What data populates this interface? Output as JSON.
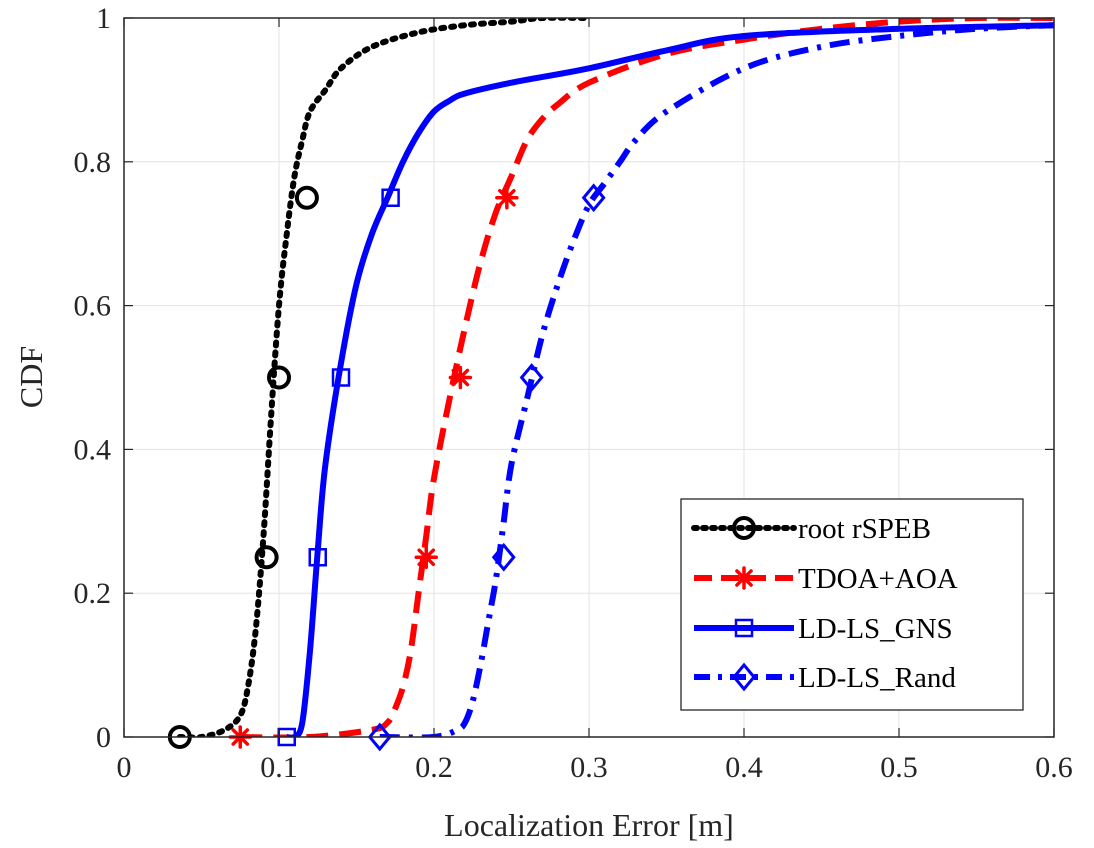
{
  "chart_data": {
    "type": "line",
    "title": "",
    "xlabel": "Localization Error [m]",
    "ylabel": "CDF",
    "xlim": [
      0,
      0.6
    ],
    "ylim": [
      0,
      1
    ],
    "xticks": [
      "0",
      "0.1",
      "0.2",
      "0.3",
      "0.4",
      "0.5",
      "0.6"
    ],
    "yticks": [
      "0",
      "0.2",
      "0.4",
      "0.6",
      "0.8",
      "1"
    ],
    "grid": true,
    "legend_position": "lower-right",
    "series": [
      {
        "name": "root rSPEB",
        "color": "#000000",
        "line_style": "dotted",
        "marker": "circle",
        "x": [
          0.036,
          0.05,
          0.065,
          0.075,
          0.08,
          0.085,
          0.09,
          0.095,
          0.1,
          0.105,
          0.11,
          0.115,
          0.12,
          0.13,
          0.14,
          0.16,
          0.19,
          0.22,
          0.25,
          0.27,
          0.3
        ],
        "y": [
          0.0,
          0.0,
          0.01,
          0.03,
          0.07,
          0.15,
          0.28,
          0.45,
          0.6,
          0.7,
          0.78,
          0.83,
          0.87,
          0.9,
          0.93,
          0.96,
          0.98,
          0.99,
          0.995,
          1.0,
          1.0
        ],
        "markers": [
          [
            0.036,
            0.0
          ],
          [
            0.092,
            0.25
          ],
          [
            0.1,
            0.5
          ],
          [
            0.118,
            0.75
          ]
        ]
      },
      {
        "name": "TDOA+AOA",
        "color": "#ff0000",
        "line_style": "dashed",
        "marker": "asterisk",
        "x": [
          0.075,
          0.12,
          0.16,
          0.17,
          0.175,
          0.18,
          0.185,
          0.19,
          0.195,
          0.2,
          0.21,
          0.22,
          0.23,
          0.24,
          0.25,
          0.26,
          0.27,
          0.28,
          0.3,
          0.35,
          0.4,
          0.45,
          0.5,
          0.55,
          0.6
        ],
        "y": [
          0.0,
          0.0,
          0.01,
          0.02,
          0.04,
          0.07,
          0.12,
          0.2,
          0.28,
          0.36,
          0.47,
          0.57,
          0.66,
          0.73,
          0.78,
          0.83,
          0.86,
          0.88,
          0.91,
          0.95,
          0.97,
          0.985,
          0.995,
          1.0,
          1.0
        ],
        "markers": [
          [
            0.075,
            0.0
          ],
          [
            0.195,
            0.25
          ],
          [
            0.217,
            0.5
          ],
          [
            0.247,
            0.75
          ]
        ]
      },
      {
        "name": "LD-LS_GNS",
        "color": "#0000ff",
        "line_style": "solid",
        "marker": "square",
        "x": [
          0.105,
          0.11,
          0.115,
          0.12,
          0.125,
          0.13,
          0.14,
          0.15,
          0.16,
          0.17,
          0.18,
          0.19,
          0.2,
          0.21,
          0.22,
          0.25,
          0.3,
          0.35,
          0.4,
          0.5,
          0.6
        ],
        "y": [
          0.0,
          0.0,
          0.02,
          0.12,
          0.26,
          0.38,
          0.52,
          0.63,
          0.7,
          0.75,
          0.8,
          0.84,
          0.87,
          0.885,
          0.895,
          0.91,
          0.93,
          0.955,
          0.975,
          0.985,
          0.99
        ],
        "markers": [
          [
            0.105,
            0.0
          ],
          [
            0.125,
            0.25
          ],
          [
            0.14,
            0.5
          ],
          [
            0.172,
            0.75
          ]
        ]
      },
      {
        "name": "LD-LS_Rand",
        "color": "#0000ff",
        "line_style": "dash-dot",
        "marker": "diamond",
        "x": [
          0.165,
          0.2,
          0.215,
          0.22,
          0.225,
          0.23,
          0.235,
          0.24,
          0.245,
          0.25,
          0.26,
          0.27,
          0.28,
          0.29,
          0.3,
          0.31,
          0.32,
          0.33,
          0.35,
          0.4,
          0.45,
          0.5,
          0.55,
          0.6
        ],
        "y": [
          0.0,
          0.0,
          0.01,
          0.02,
          0.05,
          0.1,
          0.16,
          0.22,
          0.3,
          0.38,
          0.47,
          0.56,
          0.63,
          0.69,
          0.74,
          0.77,
          0.8,
          0.83,
          0.87,
          0.93,
          0.96,
          0.975,
          0.985,
          0.99
        ],
        "markers": [
          [
            0.165,
            0.0
          ],
          [
            0.245,
            0.25
          ],
          [
            0.263,
            0.5
          ],
          [
            0.303,
            0.75
          ]
        ]
      }
    ]
  }
}
